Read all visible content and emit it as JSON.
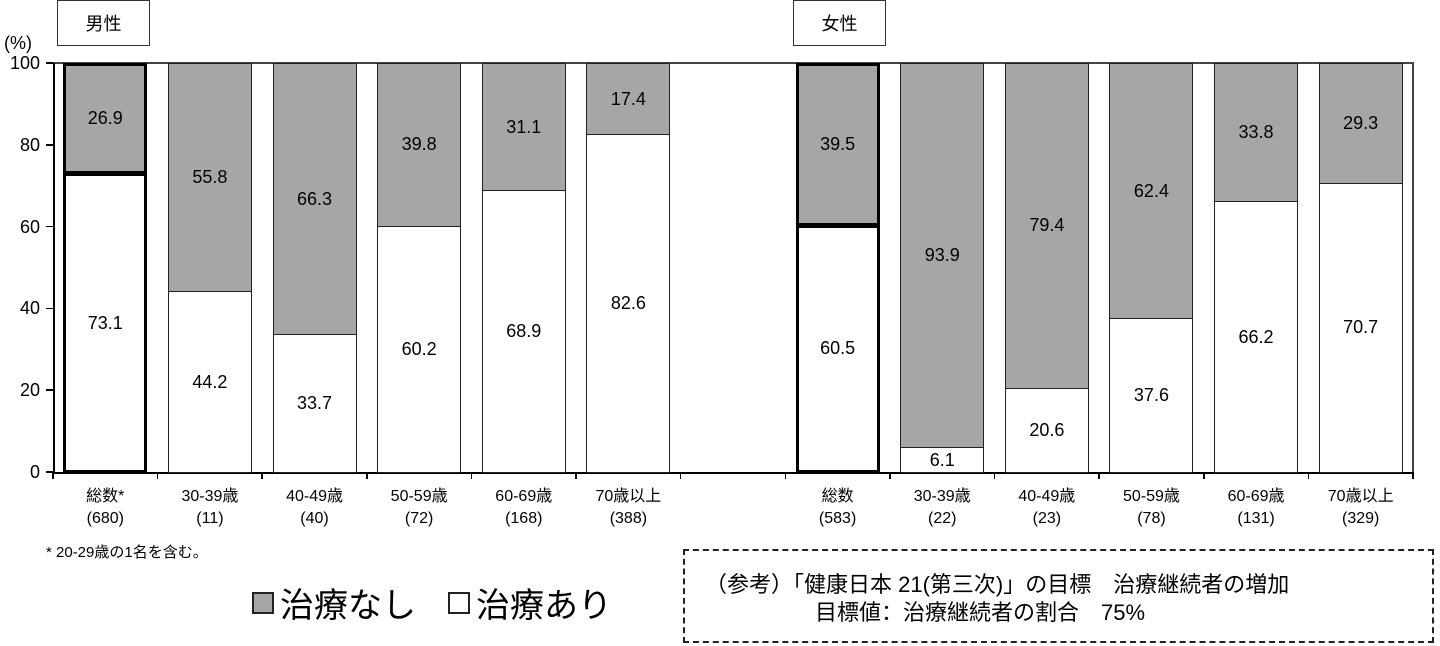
{
  "chart_data": {
    "type": "bar",
    "stacked": true,
    "percent": true,
    "ylabel": "(%)",
    "ylim": [
      0,
      100
    ],
    "yticks": [
      0,
      20,
      40,
      60,
      80,
      100
    ],
    "legend": [
      {
        "name": "治療なし",
        "color": "#a6a6a6"
      },
      {
        "name": "治療あり",
        "color": "#ffffff"
      }
    ],
    "panels": [
      {
        "title": "男性",
        "categories": [
          "総数*",
          "30-39歳",
          "40-49歳",
          "50-59歳",
          "60-69歳",
          "70歳以上"
        ],
        "n": [
          "(680)",
          "(11)",
          "(40)",
          "(72)",
          "(168)",
          "(388)"
        ],
        "series": [
          {
            "name": "治療あり",
            "values": [
              73.1,
              44.2,
              33.7,
              60.2,
              68.9,
              82.6
            ]
          },
          {
            "name": "治療なし",
            "values": [
              26.9,
              55.8,
              66.3,
              39.8,
              31.1,
              17.4
            ]
          }
        ]
      },
      {
        "title": "女性",
        "categories": [
          "総数",
          "30-39歳",
          "40-49歳",
          "50-59歳",
          "60-69歳",
          "70歳以上"
        ],
        "n": [
          "(583)",
          "(22)",
          "(23)",
          "(78)",
          "(131)",
          "(329)"
        ],
        "series": [
          {
            "name": "治療あり",
            "values": [
              60.5,
              6.1,
              20.6,
              37.6,
              66.2,
              70.7
            ]
          },
          {
            "name": "治療なし",
            "values": [
              39.5,
              93.9,
              79.4,
              62.4,
              33.8,
              29.3
            ]
          }
        ]
      }
    ],
    "footnote": "* 20-29歳の1名を含む。",
    "annotation": {
      "line1": "（参考）「健康日本 21(第三次)」の目標　治療継続者の増加",
      "line2": "目標値：治療継続者の割合　75%"
    }
  }
}
